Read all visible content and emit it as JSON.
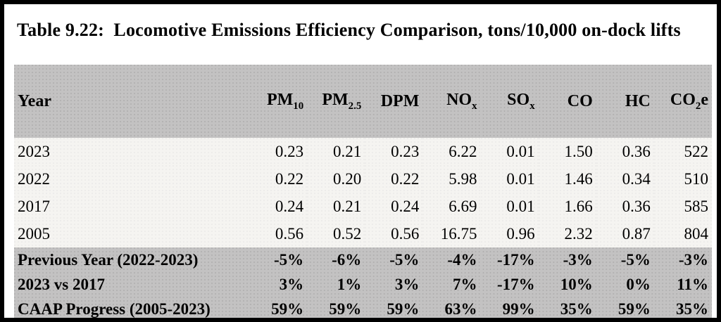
{
  "title": "Table 9.22:  Locomotive Emissions Efficiency Comparison, tons/10,000 on-dock lifts",
  "colors": {
    "band_gray": "#c3c2c2",
    "data_row_light": "#f5f4f1",
    "frame_black": "#000000"
  },
  "table": {
    "columns": [
      {
        "id": "year",
        "label": "Year",
        "sub": "",
        "post": ""
      },
      {
        "id": "pm10",
        "label": "PM",
        "sub": "10",
        "post": ""
      },
      {
        "id": "pm2-5",
        "label": "PM",
        "sub": "2.5",
        "post": ""
      },
      {
        "id": "dpm",
        "label": "DPM",
        "sub": "",
        "post": ""
      },
      {
        "id": "nox",
        "label": "NO",
        "sub": "x",
        "post": ""
      },
      {
        "id": "sox",
        "label": "SO",
        "sub": "x",
        "post": ""
      },
      {
        "id": "co",
        "label": "CO",
        "sub": "",
        "post": ""
      },
      {
        "id": "hc",
        "label": "HC",
        "sub": "",
        "post": ""
      },
      {
        "id": "co2e",
        "label": "CO",
        "sub": "2",
        "post": "e"
      }
    ],
    "data_rows": [
      {
        "label": "2023",
        "values": [
          "0.23",
          "0.21",
          "0.23",
          "6.22",
          "0.01",
          "1.50",
          "0.36",
          "522"
        ]
      },
      {
        "label": "2022",
        "values": [
          "0.22",
          "0.20",
          "0.22",
          "5.98",
          "0.01",
          "1.46",
          "0.34",
          "510"
        ]
      },
      {
        "label": "2017",
        "values": [
          "0.24",
          "0.21",
          "0.24",
          "6.69",
          "0.01",
          "1.66",
          "0.36",
          "585"
        ]
      },
      {
        "label": "2005",
        "values": [
          "0.56",
          "0.52",
          "0.56",
          "16.75",
          "0.96",
          "2.32",
          "0.87",
          "804"
        ]
      }
    ],
    "summary_rows": [
      {
        "label": "Previous Year (2022-2023)",
        "values": [
          "-5%",
          "-6%",
          "-5%",
          "-4%",
          "-17%",
          "-3%",
          "-5%",
          "-3%"
        ]
      },
      {
        "label": "2023 vs 2017",
        "values": [
          "3%",
          "1%",
          "3%",
          "7%",
          "-17%",
          "10%",
          "0%",
          "11%"
        ]
      },
      {
        "label": "CAAP Progress (2005-2023)",
        "values": [
          "59%",
          "59%",
          "59%",
          "63%",
          "99%",
          "35%",
          "59%",
          "35%"
        ]
      }
    ]
  }
}
